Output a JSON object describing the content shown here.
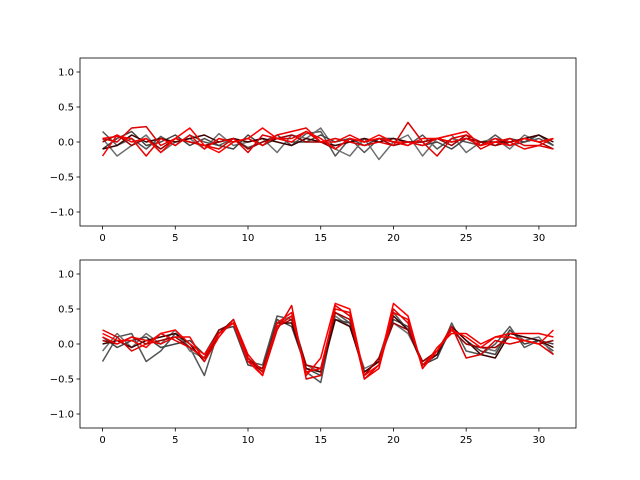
{
  "chart_data": [
    {
      "type": "line",
      "title": "",
      "xlabel": "",
      "ylabel": "",
      "xlim": [
        -1.55,
        32.55
      ],
      "ylim": [
        -1.2,
        1.2
      ],
      "xticks": [
        0,
        5,
        10,
        15,
        20,
        25,
        30
      ],
      "yticks": [
        1.0,
        0.5,
        0.0,
        -0.5,
        -1.0
      ],
      "xtick_labels": [
        "0",
        "5",
        "10",
        "15",
        "20",
        "25",
        "30"
      ],
      "ytick_labels": [
        "1.0",
        "0.5",
        "0.0",
        "−0.5",
        "−1.0"
      ],
      "grid": false,
      "legend": "none",
      "x": [
        0,
        1,
        2,
        3,
        4,
        5,
        6,
        7,
        8,
        9,
        10,
        11,
        12,
        13,
        14,
        15,
        16,
        17,
        18,
        19,
        20,
        21,
        22,
        23,
        24,
        25,
        26,
        27,
        28,
        29,
        30,
        31
      ],
      "series": [
        {
          "color": "#555555",
          "values": [
            0.15,
            -0.05,
            0.05,
            -0.1,
            0.08,
            -0.05,
            0.1,
            0.0,
            -0.05,
            0.05,
            -0.08,
            0.0,
            0.1,
            -0.05,
            0.12,
            0.15,
            -0.2,
            0.05,
            -0.15,
            0.05,
            0.0,
            -0.05,
            0.1,
            -0.1,
            0.05,
            0.0,
            -0.05,
            0.1,
            -0.05,
            0.0,
            0.05,
            -0.05
          ]
        },
        {
          "color": "#6e6e6e",
          "values": [
            0.05,
            -0.2,
            -0.05,
            0.1,
            -0.15,
            0.0,
            0.05,
            -0.1,
            0.12,
            -0.05,
            0.0,
            0.05,
            -0.15,
            0.1,
            0.05,
            0.2,
            -0.1,
            -0.2,
            0.05,
            -0.25,
            0.0,
            0.1,
            -0.2,
            0.05,
            0.1,
            -0.15,
            0.0,
            0.05,
            -0.1,
            0.1,
            0.0,
            0.05
          ]
        },
        {
          "color": "#444444",
          "values": [
            -0.1,
            0.05,
            0.15,
            -0.05,
            0.0,
            0.1,
            -0.05,
            0.05,
            -0.05,
            -0.1,
            0.1,
            -0.05,
            0.05,
            0.0,
            0.0,
            0.1,
            0.0,
            0.05,
            -0.05,
            0.05,
            0.05,
            0.0,
            -0.05,
            0.0,
            -0.1,
            0.05,
            0.0,
            -0.05,
            0.05,
            0.0,
            0.1,
            -0.05
          ]
        },
        {
          "color": "#3a0000",
          "values": [
            -0.1,
            -0.05,
            0.1,
            0.0,
            0.05,
            0.0,
            0.05,
            0.1,
            0.0,
            0.05,
            0.0,
            0.05,
            0.0,
            -0.05,
            0.05,
            0.0,
            -0.05,
            0.0,
            0.05,
            0.0,
            0.05,
            0.0,
            0.0,
            0.05,
            0.0,
            0.05,
            0.0,
            0.0,
            0.0,
            0.05,
            0.1,
            0.0
          ]
        },
        {
          "color": "#9a0000",
          "values": [
            0.0,
            0.1,
            -0.05,
            0.05,
            -0.1,
            0.05,
            0.0,
            -0.05,
            0.0,
            0.05,
            -0.1,
            0.0,
            0.05,
            0.1,
            0.0,
            0.0,
            -0.1,
            0.05,
            0.0,
            0.05,
            -0.05,
            0.0,
            0.0,
            0.05,
            -0.05,
            0.1,
            0.0,
            -0.05,
            0.0,
            0.05,
            0.0,
            -0.1
          ]
        },
        {
          "color": "#dd0000",
          "values": [
            0.05,
            0.0,
            0.2,
            0.22,
            -0.05,
            0.05,
            0.0,
            -0.05,
            -0.1,
            0.05,
            -0.15,
            0.1,
            0.05,
            0.05,
            0.15,
            0.0,
            0.05,
            0.0,
            -0.05,
            0.0,
            -0.05,
            0.28,
            0.0,
            -0.2,
            0.05,
            0.1,
            -0.1,
            0.0,
            0.05,
            -0.05,
            -0.05,
            -0.1
          ]
        },
        {
          "color": "#ff0000",
          "values": [
            -0.2,
            0.1,
            0.0,
            0.05,
            -0.15,
            0.05,
            0.2,
            -0.05,
            -0.15,
            0.0,
            0.05,
            0.2,
            0.05,
            0.0,
            0.15,
            0.05,
            -0.1,
            0.05,
            0.0,
            0.1,
            0.0,
            -0.05,
            0.05,
            0.05,
            0.1,
            0.15,
            -0.05,
            0.0,
            -0.05,
            0.05,
            0.0,
            0.05
          ]
        },
        {
          "color": "#ee0000",
          "values": [
            0.05,
            0.08,
            0.05,
            -0.2,
            0.05,
            -0.05,
            0.1,
            -0.1,
            0.05,
            0.0,
            0.05,
            -0.05,
            0.1,
            0.15,
            0.2,
            0.0,
            0.0,
            0.1,
            0.0,
            0.05,
            0.0,
            0.0,
            -0.05,
            0.05,
            0.0,
            0.05,
            -0.05,
            0.05,
            0.0,
            -0.1,
            -0.05,
            0.05
          ]
        }
      ]
    },
    {
      "type": "line",
      "title": "",
      "xlabel": "",
      "ylabel": "",
      "xlim": [
        -1.55,
        32.55
      ],
      "ylim": [
        -1.2,
        1.2
      ],
      "xticks": [
        0,
        5,
        10,
        15,
        20,
        25,
        30
      ],
      "yticks": [
        1.0,
        0.5,
        0.0,
        -0.5,
        -1.0
      ],
      "xtick_labels": [
        "0",
        "5",
        "10",
        "15",
        "20",
        "25",
        "30"
      ],
      "ytick_labels": [
        "1.0",
        "0.5",
        "0.0",
        "−0.5",
        "−1.0"
      ],
      "grid": false,
      "legend": "none",
      "x": [
        0,
        1,
        2,
        3,
        4,
        5,
        6,
        7,
        8,
        9,
        10,
        11,
        12,
        13,
        14,
        15,
        16,
        17,
        18,
        19,
        20,
        21,
        22,
        23,
        24,
        25,
        26,
        27,
        28,
        29,
        30,
        31
      ],
      "series": [
        {
          "color": "#555555",
          "values": [
            -0.25,
            0.1,
            0.15,
            -0.25,
            -0.1,
            0.15,
            -0.05,
            -0.45,
            0.2,
            0.3,
            -0.25,
            -0.3,
            0.4,
            0.35,
            -0.4,
            -0.55,
            0.45,
            0.3,
            -0.45,
            -0.2,
            0.45,
            0.2,
            -0.3,
            -0.2,
            0.3,
            -0.1,
            -0.15,
            0.0,
            0.25,
            -0.05,
            0.05,
            -0.1
          ]
        },
        {
          "color": "#6e6e6e",
          "values": [
            -0.1,
            0.15,
            -0.05,
            0.15,
            0.0,
            0.2,
            -0.1,
            -0.2,
            0.15,
            0.35,
            -0.2,
            -0.4,
            0.3,
            0.4,
            -0.3,
            -0.4,
            0.4,
            0.25,
            -0.35,
            -0.25,
            0.3,
            0.15,
            -0.25,
            -0.15,
            0.2,
            0.0,
            -0.05,
            -0.1,
            0.2,
            0.05,
            0.1,
            -0.15
          ]
        },
        {
          "color": "#444444",
          "values": [
            0.1,
            -0.05,
            0.05,
            0.1,
            -0.05,
            0.0,
            0.05,
            -0.15,
            0.2,
            0.25,
            -0.3,
            -0.35,
            0.35,
            0.25,
            -0.35,
            -0.45,
            0.35,
            0.3,
            -0.4,
            -0.25,
            0.35,
            0.25,
            -0.3,
            -0.2,
            0.25,
            0.05,
            -0.1,
            -0.15,
            0.2,
            0.0,
            0.05,
            0.0
          ]
        },
        {
          "color": "#3a0000",
          "values": [
            0.0,
            0.05,
            -0.05,
            0.05,
            0.1,
            0.15,
            0.0,
            -0.25,
            0.15,
            0.35,
            -0.2,
            -0.4,
            0.3,
            0.3,
            -0.35,
            -0.4,
            0.35,
            0.25,
            -0.4,
            -0.25,
            0.4,
            0.2,
            -0.3,
            -0.15,
            0.25,
            0.05,
            -0.15,
            -0.2,
            0.15,
            0.1,
            0.05,
            -0.05
          ]
        },
        {
          "color": "#9a0000",
          "values": [
            0.05,
            0.0,
            0.1,
            0.0,
            0.05,
            0.1,
            -0.05,
            -0.2,
            0.2,
            0.3,
            -0.25,
            -0.35,
            0.25,
            0.35,
            -0.3,
            -0.35,
            0.45,
            0.35,
            -0.45,
            -0.2,
            0.3,
            0.2,
            -0.25,
            -0.1,
            0.2,
            0.0,
            -0.05,
            -0.05,
            0.1,
            0.05,
            0.0,
            0.05
          ]
        },
        {
          "color": "#dd0000",
          "values": [
            0.2,
            0.1,
            -0.1,
            0.0,
            0.15,
            0.05,
            -0.05,
            -0.2,
            0.15,
            0.3,
            -0.2,
            -0.45,
            0.2,
            0.55,
            -0.5,
            -0.45,
            0.55,
            0.4,
            -0.5,
            -0.3,
            0.5,
            0.3,
            -0.3,
            -0.1,
            0.25,
            -0.2,
            -0.15,
            0.05,
            0.0,
            0.05,
            0.0,
            -0.15
          ]
        },
        {
          "color": "#ff0000",
          "values": [
            0.15,
            0.05,
            0.05,
            -0.05,
            0.15,
            0.2,
            0.0,
            -0.15,
            0.15,
            0.3,
            -0.25,
            -0.45,
            0.3,
            0.45,
            -0.45,
            -0.2,
            0.58,
            0.5,
            -0.45,
            -0.3,
            0.58,
            0.4,
            -0.35,
            -0.1,
            0.2,
            0.1,
            -0.05,
            0.1,
            0.1,
            0.05,
            0.0,
            0.2
          ]
        },
        {
          "color": "#ee0000",
          "values": [
            0.1,
            0.0,
            0.1,
            0.05,
            0.0,
            0.1,
            0.1,
            -0.25,
            0.1,
            0.35,
            -0.15,
            -0.4,
            0.25,
            0.4,
            -0.4,
            -0.35,
            0.5,
            0.45,
            -0.5,
            -0.35,
            0.45,
            0.35,
            -0.35,
            -0.05,
            0.15,
            0.15,
            0.0,
            0.1,
            0.15,
            0.15,
            0.15,
            0.1
          ]
        }
      ]
    }
  ]
}
